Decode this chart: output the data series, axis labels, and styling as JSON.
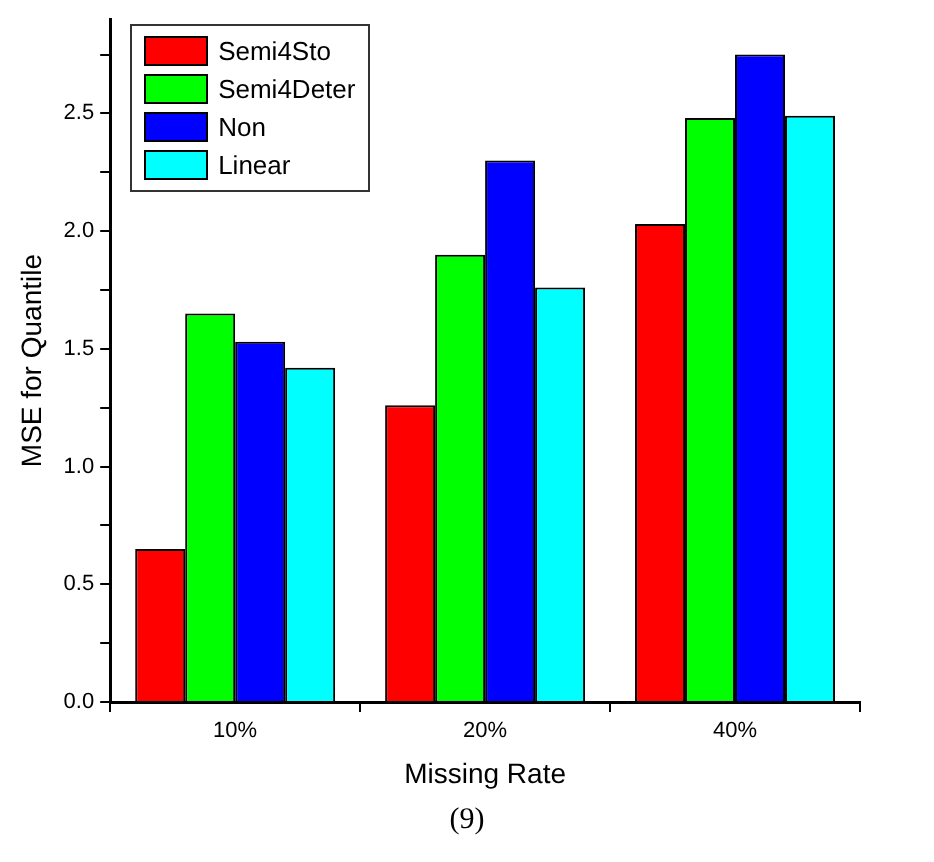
{
  "chart_data": {
    "type": "bar",
    "xlabel": "Missing Rate",
    "ylabel": "MSE for Quantile",
    "categories": [
      "10%",
      "20%",
      "40%"
    ],
    "series": [
      {
        "name": "Semi4Sto",
        "color": "#ff0000",
        "values": [
          0.65,
          1.26,
          2.03
        ]
      },
      {
        "name": "Semi4Deter",
        "color": "#00ff00",
        "values": [
          1.65,
          1.9,
          2.48
        ]
      },
      {
        "name": "Non",
        "color": "#0000ff",
        "values": [
          1.53,
          2.3,
          2.75
        ]
      },
      {
        "name": "Linear",
        "color": "#00ffff",
        "values": [
          1.42,
          1.76,
          2.49
        ]
      }
    ],
    "ylim": [
      0,
      2.9
    ],
    "yticks": [
      {
        "value": 0,
        "label": "0.0"
      },
      {
        "value": 0.25,
        "label": null
      },
      0.5,
      {
        "value": 0.75,
        "label": null
      },
      {
        "value": 1,
        "label": "1.0"
      },
      {
        "value": 1.25,
        "label": null
      },
      1.5,
      {
        "value": 1.75,
        "label": null
      },
      {
        "value": 2,
        "label": "2.0"
      },
      {
        "value": 2.25,
        "label": null
      },
      2.5,
      {
        "value": 2.75,
        "label": null
      }
    ],
    "grid": false,
    "legend": "top left",
    "annotations": [
      "(9)"
    ]
  }
}
